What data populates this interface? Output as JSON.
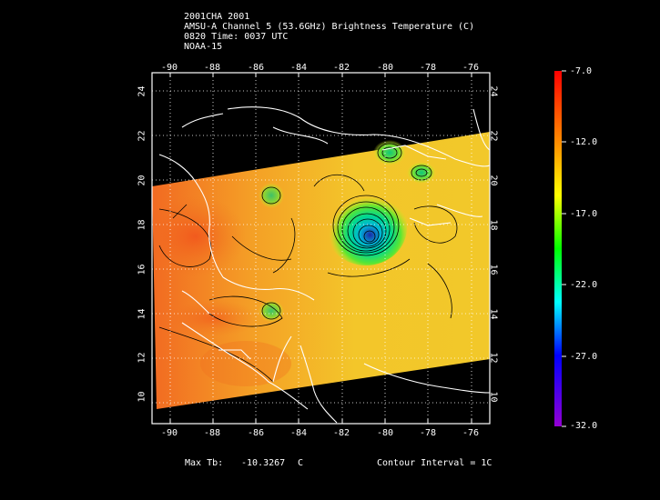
{
  "header": {
    "line1": "2001CHA 2001",
    "line2": "AMSU-A Channel 5 (53.6GHz) Brightness Temperature (C)",
    "line3": "0820 Time: 0037 UTC",
    "line4": "NOAA-15"
  },
  "map": {
    "lon_ticks": [
      "-90",
      "-88",
      "-86",
      "-84",
      "-82",
      "-80",
      "-78",
      "-76"
    ],
    "lat_ticks": [
      "24",
      "22",
      "20",
      "18",
      "16",
      "14",
      "12",
      "10"
    ]
  },
  "colorbar": {
    "labels": [
      "-7.0",
      "-12.0",
      "-17.0",
      "-22.0",
      "-27.0",
      "-32.0"
    ],
    "colors": [
      "#ff0000",
      "#ff8c00",
      "#ffff00",
      "#00ff00",
      "#00ffff",
      "#0000ff",
      "#9400d3"
    ]
  },
  "footer": {
    "max_tb_label": "Max Tb:",
    "max_tb_value": "-10.3267",
    "max_tb_unit": "C",
    "contour_interval": "Contour Interval = 1C"
  }
}
